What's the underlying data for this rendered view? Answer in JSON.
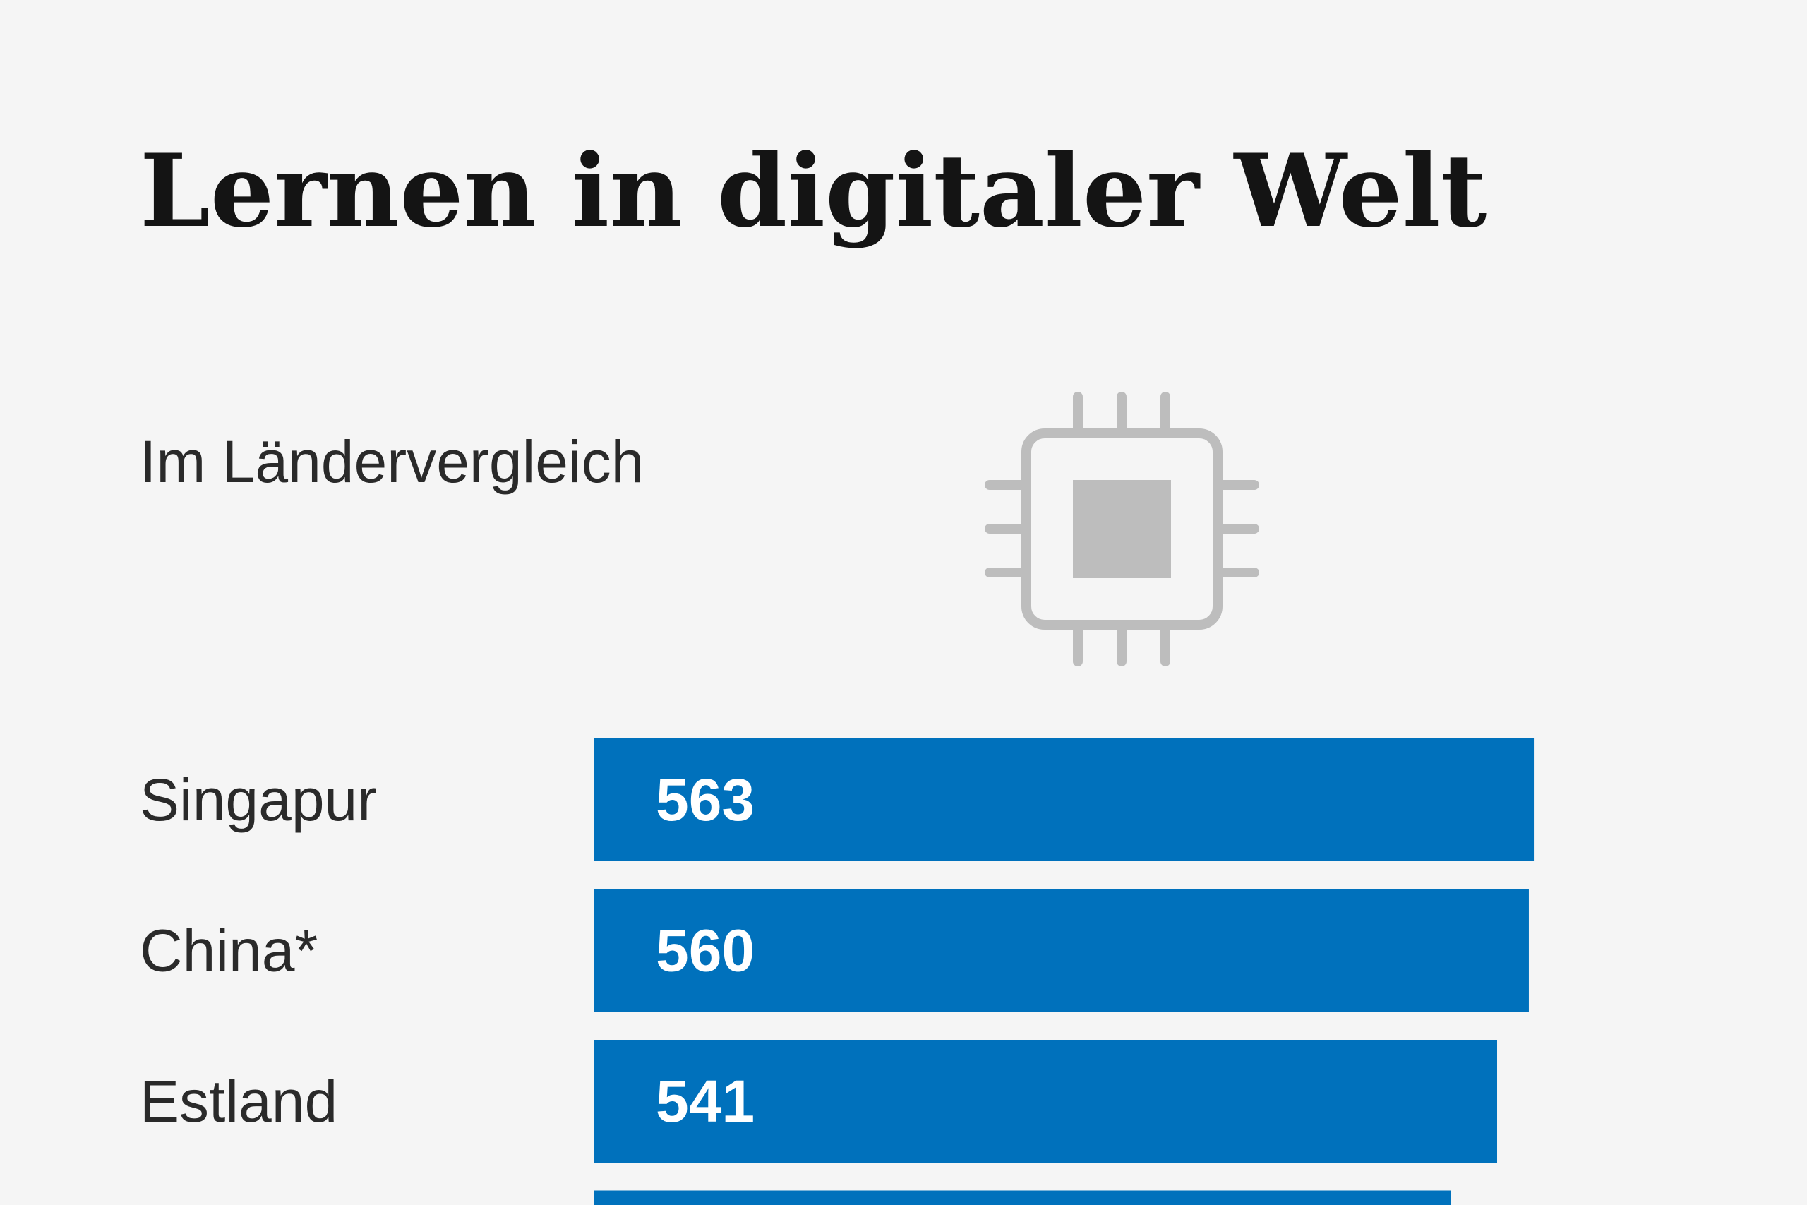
{
  "header": {
    "title": "Lernen in digitaler Welt",
    "subtitle": "Im Ländervergleich"
  },
  "icons": {
    "illustration": "microchip-icon"
  },
  "colors": {
    "bar": "#0071bc",
    "icon": "#bdbdbd",
    "background": "#f5f5f5"
  },
  "chart_data": {
    "type": "bar",
    "orientation": "horizontal",
    "title": "Lernen in digitaler Welt",
    "subtitle": "Im Ländervergleich",
    "categories": [
      "Singapur",
      "China*",
      "Estland"
    ],
    "values": [
      563,
      560,
      541
    ],
    "data_labels": [
      "563",
      "560",
      "541"
    ],
    "grid": false,
    "legend": "none"
  }
}
